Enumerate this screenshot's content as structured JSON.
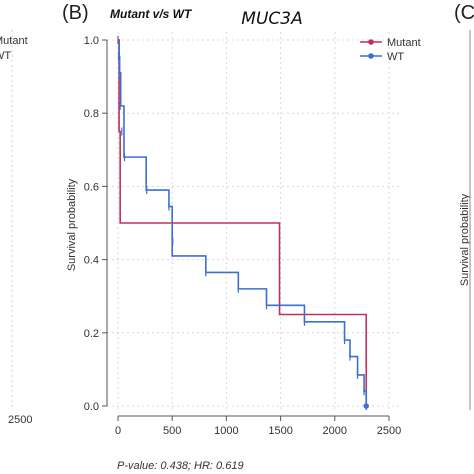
{
  "panel_label": "(B)",
  "right_panel_label": "(C",
  "left_panel": {
    "legend": [
      "Mutant",
      "WT"
    ],
    "x_tick": "2500"
  },
  "right_panel": {
    "ylabel": "Survival probability"
  },
  "chart_data": {
    "type": "line",
    "title": "MUC3A",
    "subtitle": "Mutant v/s WT",
    "xlabel": "",
    "ylabel": "Survival probability",
    "xlim": [
      0,
      2500
    ],
    "ylim": [
      0,
      1.0
    ],
    "x_ticks": [
      0,
      500,
      1000,
      1500,
      2000,
      2500
    ],
    "y_ticks": [
      "0.0",
      "0.2",
      "0.4",
      "0.6",
      "0.8",
      "1.0"
    ],
    "grid": true,
    "legend_position": "top-right",
    "footer": "P-value: 0.438; HR: 0.619",
    "series": [
      {
        "name": "Mutant",
        "color": "#c0305a",
        "steps": [
          [
            0,
            1.0
          ],
          [
            10,
            0.75
          ],
          [
            20,
            0.5
          ],
          [
            1490,
            0.25
          ],
          [
            2290,
            0.0
          ]
        ],
        "censor": [
          [
            0,
            1.0
          ],
          [
            2290,
            0.0
          ]
        ]
      },
      {
        "name": "WT",
        "color": "#3b6fd6",
        "steps": [
          [
            0,
            1.0
          ],
          [
            10,
            0.955
          ],
          [
            15,
            0.91
          ],
          [
            25,
            0.82
          ],
          [
            55,
            0.68
          ],
          [
            260,
            0.59
          ],
          [
            470,
            0.545
          ],
          [
            500,
            0.41
          ],
          [
            810,
            0.365
          ],
          [
            1110,
            0.32
          ],
          [
            1370,
            0.275
          ],
          [
            1720,
            0.23
          ],
          [
            2090,
            0.18
          ],
          [
            2140,
            0.135
          ],
          [
            2210,
            0.085
          ],
          [
            2270,
            0.04
          ],
          [
            2290,
            0.0
          ]
        ],
        "censor": [
          [
            5,
            0.955
          ],
          [
            12,
            0.91
          ],
          [
            20,
            0.82
          ],
          [
            35,
            0.75
          ],
          [
            60,
            0.68
          ],
          [
            260,
            0.63
          ],
          [
            265,
            0.59
          ],
          [
            470,
            0.545
          ],
          [
            500,
            0.5
          ],
          [
            505,
            0.45
          ],
          [
            810,
            0.365
          ],
          [
            1110,
            0.32
          ],
          [
            1370,
            0.275
          ],
          [
            1720,
            0.23
          ],
          [
            2090,
            0.18
          ],
          [
            2140,
            0.135
          ],
          [
            2210,
            0.085
          ],
          [
            2270,
            0.04
          ],
          [
            2290,
            0.0
          ]
        ]
      }
    ]
  }
}
